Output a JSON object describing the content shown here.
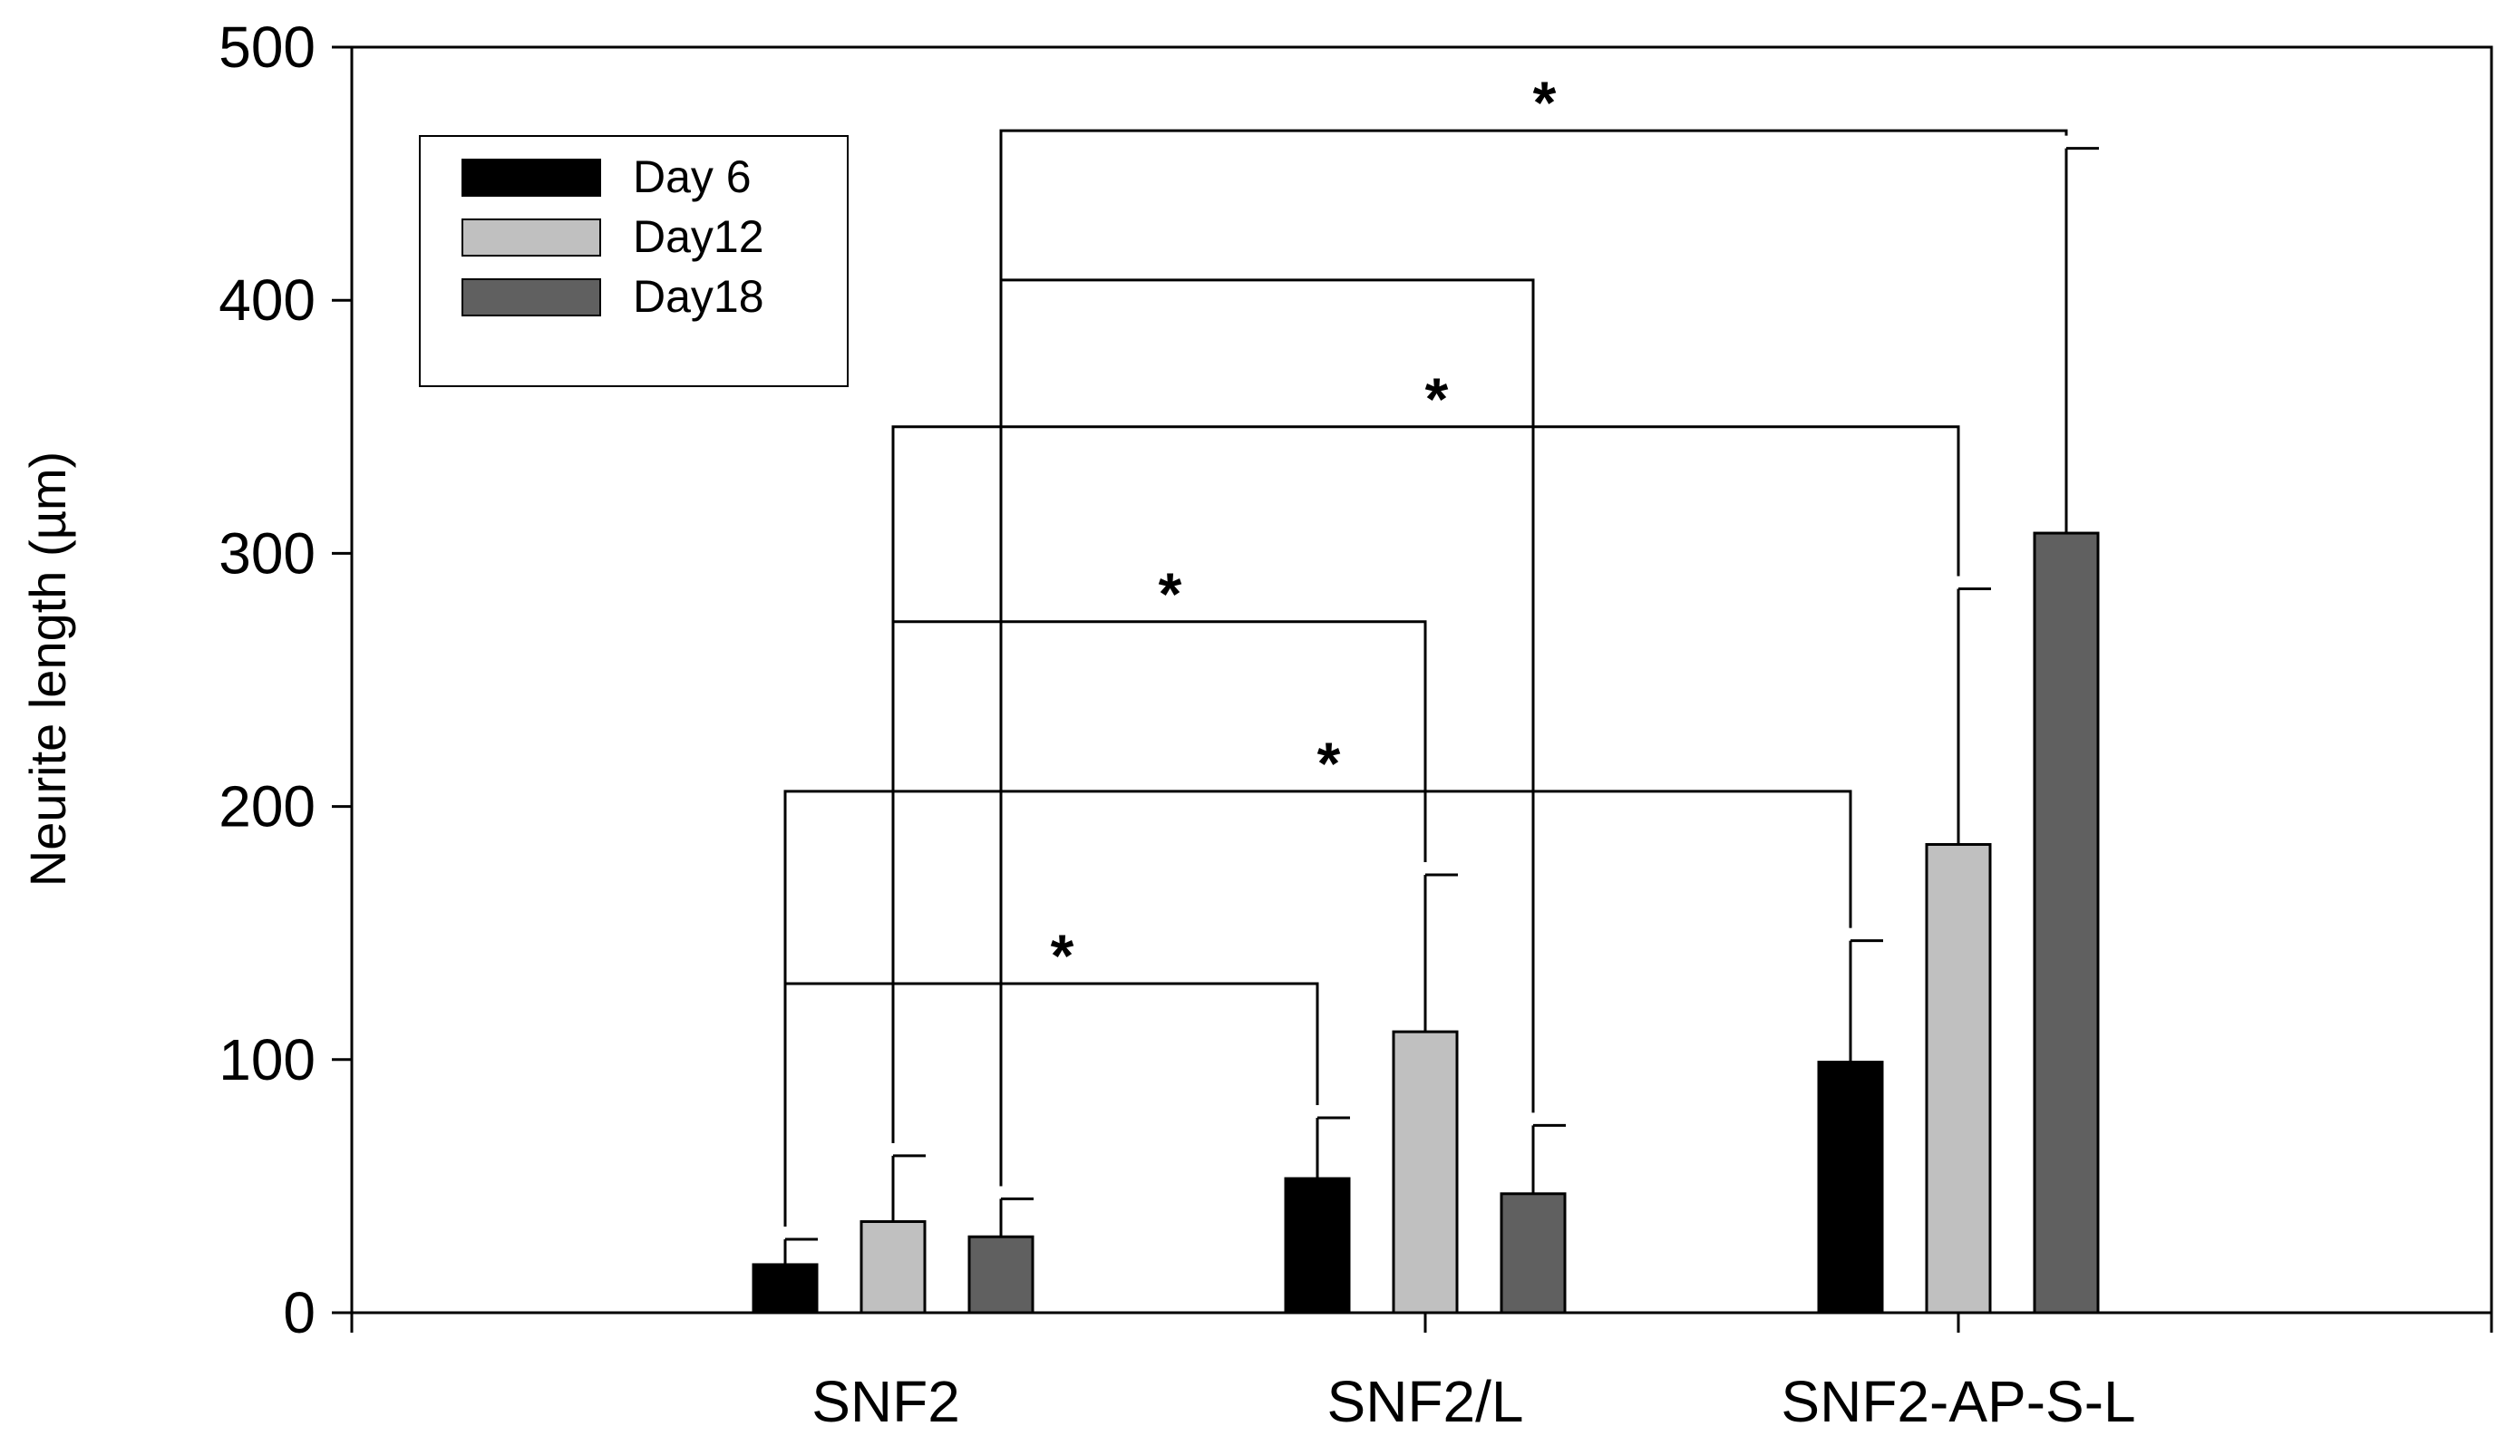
{
  "chart_data": {
    "type": "bar",
    "title": "",
    "xlabel": "",
    "ylabel": "Neurite length (µm)",
    "ylim": [
      0,
      500
    ],
    "yticks": [
      0,
      100,
      200,
      300,
      400,
      500
    ],
    "grid": false,
    "legend_position": "top-left",
    "categories": [
      "SNF2",
      "SNF2/L",
      "SNF2-AP-S-L"
    ],
    "series": [
      {
        "name": "Day 6",
        "color": "#000000",
        "values": [
          19,
          53,
          99
        ],
        "errors": [
          10,
          24,
          48
        ]
      },
      {
        "name": "Day12",
        "color": "#c0c0c0",
        "values": [
          36,
          111,
          185
        ],
        "errors": [
          26,
          62,
          101
        ]
      },
      {
        "name": "Day18",
        "color": "#606060",
        "values": [
          30,
          47,
          308
        ],
        "errors": [
          15,
          27,
          152
        ]
      }
    ],
    "significance": [
      {
        "from": [
          0,
          0
        ],
        "to": [
          1,
          0
        ],
        "level": 130,
        "label": "*"
      },
      {
        "from": [
          0,
          0
        ],
        "to": [
          2,
          0
        ],
        "level": 206,
        "label": "*"
      },
      {
        "from": [
          0,
          1
        ],
        "to": [
          1,
          1
        ],
        "level": 273,
        "label": "*"
      },
      {
        "from": [
          0,
          1
        ],
        "to": [
          2,
          1
        ],
        "level": 350,
        "label": "*"
      },
      {
        "from": [
          0,
          2
        ],
        "to": [
          1,
          2
        ],
        "level": 408,
        "label": ""
      },
      {
        "from": [
          0,
          2
        ],
        "to": [
          2,
          2
        ],
        "level": 467,
        "label": "*"
      }
    ]
  }
}
